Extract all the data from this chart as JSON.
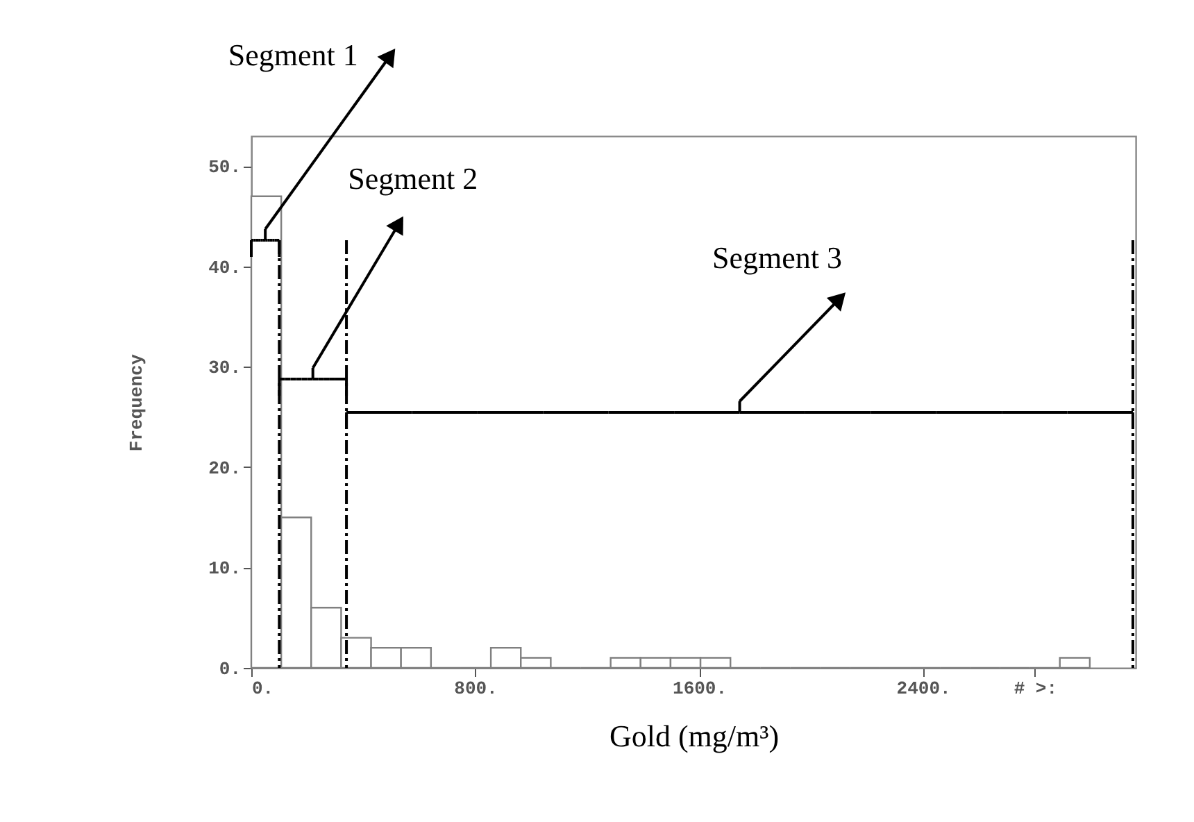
{
  "chart_data": {
    "type": "histogram",
    "xlabel": "Gold (mg/m³)",
    "ylabel": "Frequency",
    "bins": [
      0,
      107,
      214,
      321,
      428,
      535,
      642,
      749,
      856,
      963,
      1070,
      1177,
      1284,
      1391,
      1498,
      1605,
      1712,
      1819,
      1926,
      2033,
      2140,
      2247,
      2354,
      2461,
      2568,
      2675,
      2782,
      2889,
      2996
    ],
    "values": [
      47,
      15,
      6,
      3,
      2,
      2,
      0,
      0,
      2,
      1,
      0,
      0,
      1,
      1,
      1,
      1,
      0,
      0,
      0,
      0,
      0,
      0,
      0,
      0,
      0,
      0,
      0,
      1
    ],
    "color": "#808080",
    "xlim": [
      0,
      3160
    ],
    "ylim": [
      0,
      53
    ],
    "xticks": [
      {
        "value": 0,
        "label": "0."
      },
      {
        "value": 800,
        "label": "800."
      },
      {
        "value": 1600,
        "label": "1600."
      },
      {
        "value": 2400,
        "label": "2400."
      },
      {
        "value": 2800,
        "label": "# >:"
      }
    ],
    "yticks": [
      {
        "value": 0,
        "label": "0."
      },
      {
        "value": 10,
        "label": "10."
      },
      {
        "value": 20,
        "label": "20."
      },
      {
        "value": 30,
        "label": "30."
      },
      {
        "value": 40,
        "label": "40."
      },
      {
        "value": 50,
        "label": "50."
      }
    ],
    "ref_lines": [
      {
        "axis": "x",
        "value": 100,
        "line_style": "dashdot"
      },
      {
        "axis": "x",
        "value": 340,
        "line_style": "dashdot"
      },
      {
        "axis": "x",
        "value": 3150,
        "line_style": "dashdot"
      }
    ],
    "annotations": [
      "Segment 1",
      "Segment 2",
      "Segment 3"
    ],
    "grid": false
  }
}
